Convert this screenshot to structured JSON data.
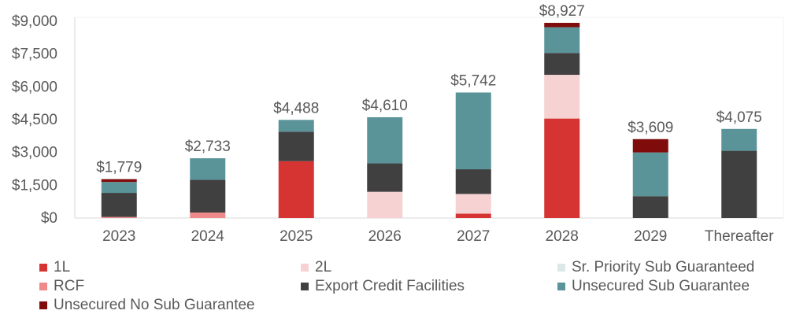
{
  "chart_data": {
    "type": "bar",
    "stacked": true,
    "categories": [
      "2023",
      "2024",
      "2025",
      "2026",
      "2027",
      "2028",
      "2029",
      "Thereafter"
    ],
    "ylim": [
      0,
      9000
    ],
    "yticks": [
      0,
      1500,
      3000,
      4500,
      6000,
      7500,
      9000
    ],
    "ytick_labels": [
      "$0",
      "$1,500",
      "$3,000",
      "$4,500",
      "$6,000",
      "$7,500",
      "$9,000"
    ],
    "grid": false,
    "legend_position": "bottom",
    "totals": [
      "$1,779",
      "$2,733",
      "$4,488",
      "$4,610",
      "$5,742",
      "$8,927",
      "$3,609",
      "$4,075"
    ],
    "series": [
      {
        "name": "1L",
        "color": "#d63333",
        "values": [
          0,
          0,
          2600,
          0,
          200,
          4550,
          0,
          0
        ]
      },
      {
        "name": "2L",
        "color": "#f6d2d2",
        "values": [
          0,
          0,
          0,
          1200,
          900,
          2000,
          0,
          0
        ]
      },
      {
        "name": "Sr. Priority Sub Guaranteed",
        "color": "#dbe8e8",
        "values": [
          0,
          0,
          0,
          0,
          0,
          0,
          0,
          0
        ]
      },
      {
        "name": "RCF",
        "color": "#ef8a8a",
        "values": [
          50,
          250,
          0,
          0,
          0,
          0,
          0,
          0
        ]
      },
      {
        "name": "Export Credit Facilities",
        "color": "#404040",
        "values": [
          1100,
          1500,
          1350,
          1300,
          1130,
          1000,
          1000,
          3075
        ]
      },
      {
        "name": "Unsecured Sub Guarantee",
        "color": "#5a9499",
        "values": [
          500,
          983,
          538,
          2110,
          3512,
          1177,
          2000,
          1000
        ]
      },
      {
        "name": "Unsecured No Sub Guarantee",
        "color": "#7f0b0b",
        "values": [
          129,
          0,
          0,
          0,
          0,
          200,
          609,
          0
        ]
      }
    ]
  }
}
